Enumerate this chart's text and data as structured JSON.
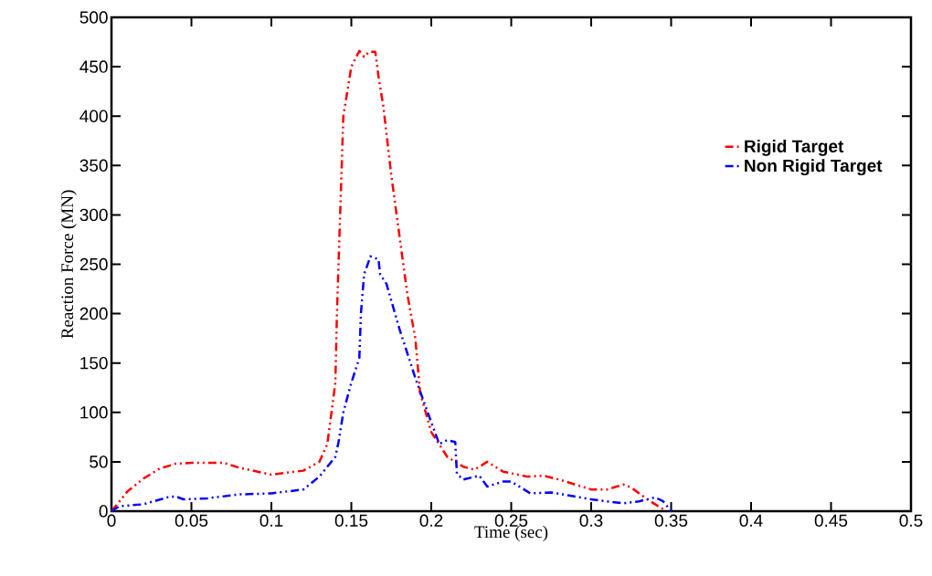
{
  "chart_data": {
    "type": "line",
    "xlabel": "Time (sec)",
    "ylabel": "Reaction Force (MN)",
    "xlim": [
      0,
      0.5
    ],
    "ylim": [
      0,
      500
    ],
    "xticks": [
      0,
      0.05,
      0.1,
      0.15,
      0.2,
      0.25,
      0.3,
      0.35,
      0.4,
      0.45,
      0.5
    ],
    "yticks": [
      0,
      50,
      100,
      150,
      200,
      250,
      300,
      350,
      400,
      450,
      500
    ],
    "grid": false,
    "legend": "top right",
    "line_style": "dashed",
    "marker": "none",
    "series": [
      {
        "name": "Rigid Target",
        "color": "#ff0000",
        "x": [
          0,
          0.01,
          0.02,
          0.03,
          0.04,
          0.05,
          0.07,
          0.08,
          0.1,
          0.12,
          0.13,
          0.135,
          0.14,
          0.141,
          0.143,
          0.145,
          0.147,
          0.15,
          0.155,
          0.158,
          0.161,
          0.165,
          0.167,
          0.17,
          0.175,
          0.18,
          0.185,
          0.19,
          0.193,
          0.2,
          0.21,
          0.22,
          0.227,
          0.235,
          0.245,
          0.26,
          0.27,
          0.28,
          0.3,
          0.31,
          0.32,
          0.325,
          0.335,
          0.345
        ],
        "values": [
          0,
          20,
          33,
          43,
          48,
          49,
          49,
          44,
          37,
          41,
          50,
          68,
          130,
          200,
          300,
          400,
          420,
          450,
          466,
          460,
          465,
          465,
          440,
          410,
          340,
          280,
          220,
          175,
          120,
          80,
          55,
          45,
          42,
          50,
          40,
          35,
          36,
          32,
          22,
          22,
          27,
          24,
          12,
          2
        ]
      },
      {
        "name": "Non Rigid Target",
        "color": "#0000ff",
        "x": [
          0,
          0.005,
          0.02,
          0.035,
          0.04,
          0.045,
          0.06,
          0.08,
          0.1,
          0.12,
          0.13,
          0.14,
          0.142,
          0.145,
          0.15,
          0.155,
          0.156,
          0.158,
          0.162,
          0.167,
          0.168,
          0.172,
          0.18,
          0.19,
          0.2,
          0.205,
          0.21,
          0.215,
          0.216,
          0.22,
          0.23,
          0.235,
          0.245,
          0.25,
          0.255,
          0.262,
          0.275,
          0.3,
          0.32,
          0.33,
          0.34,
          0.345,
          0.35
        ],
        "values": [
          0,
          5,
          7,
          14,
          15,
          12,
          13,
          17,
          18,
          22,
          35,
          55,
          70,
          100,
          130,
          155,
          200,
          240,
          258,
          255,
          240,
          230,
          185,
          135,
          90,
          68,
          72,
          70,
          38,
          32,
          36,
          25,
          30,
          30,
          25,
          18,
          19,
          12,
          8,
          10,
          14,
          10,
          0
        ]
      }
    ]
  }
}
